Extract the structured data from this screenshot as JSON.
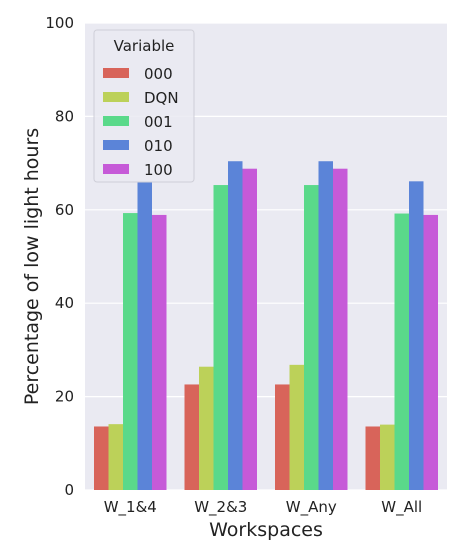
{
  "chart_data": {
    "type": "bar",
    "xlabel": "Workspaces",
    "ylabel": "Percentage of low light hours",
    "ylim": [
      0,
      100
    ],
    "yticks": [
      0,
      20,
      40,
      60,
      80,
      100
    ],
    "grid": true,
    "background": "#eaeaf2",
    "legend": {
      "title": "Variable",
      "placement": "top-left"
    },
    "categories": [
      "W_1&4",
      "W_2&3",
      "W_Any",
      "W_All"
    ],
    "series": [
      {
        "name": "000",
        "color": "#d8645a",
        "values": [
          13.6,
          22.6,
          22.6,
          13.6
        ]
      },
      {
        "name": "DQN",
        "color": "#bcd159",
        "values": [
          14.1,
          26.4,
          26.8,
          14.0
        ]
      },
      {
        "name": "001",
        "color": "#5ad98a",
        "values": [
          59.3,
          65.3,
          65.3,
          59.2
        ]
      },
      {
        "name": "010",
        "color": "#5b84d8",
        "values": [
          66.0,
          70.4,
          70.4,
          66.1
        ]
      },
      {
        "name": "100",
        "color": "#c65ad8",
        "values": [
          58.9,
          68.8,
          68.8,
          58.9
        ]
      }
    ]
  }
}
